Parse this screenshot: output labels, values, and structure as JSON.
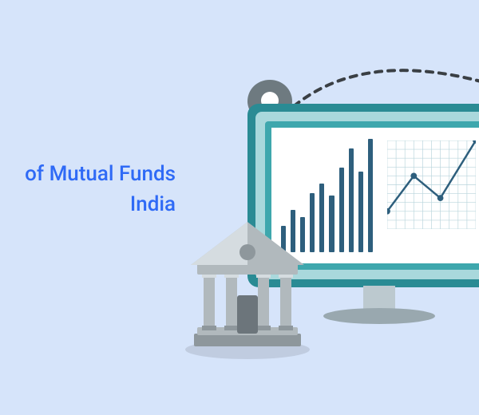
{
  "text": {
    "line1": " of Mutual Funds",
    "line2": " India",
    "color": "#2f6af6",
    "fontsize": 26,
    "fontweight": 500,
    "lineheight": 1.45
  },
  "background_color": "#d6e4fa",
  "monitor": {
    "outer_color": "#2a8b94",
    "bevel_color": "#a9d8dc",
    "inner_color": "#3ea7ad",
    "screen_color": "#ffffff",
    "stand_color": "#bcc9cf",
    "stand_base_color": "#99a8af"
  },
  "bar_chart": {
    "type": "bar",
    "values": [
      22,
      36,
      30,
      50,
      58,
      48,
      72,
      88,
      68,
      96
    ],
    "bar_color": "#2e5f7d",
    "background": "#ffffff"
  },
  "line_chart": {
    "type": "line",
    "grid_cols": 10,
    "grid_rows": 10,
    "grid_color": "#b9d5dc",
    "line_color": "#2e5f7d",
    "marker_color": "#2e5f7d",
    "points": [
      {
        "x": 0,
        "y": 8
      },
      {
        "x": 3,
        "y": 4
      },
      {
        "x": 6,
        "y": 6.5
      },
      {
        "x": 10,
        "y": 0
      }
    ]
  },
  "bank": {
    "body_color": "#b1b9bd",
    "light_color": "#d5dce0",
    "dark_color": "#8e979c",
    "door_color": "#6c757b"
  },
  "pin": {
    "fill": "#6e7a80",
    "inner": "#ffffff"
  },
  "trail": {
    "stroke": "#3a3f44",
    "dash": "8 8",
    "width": 4
  }
}
